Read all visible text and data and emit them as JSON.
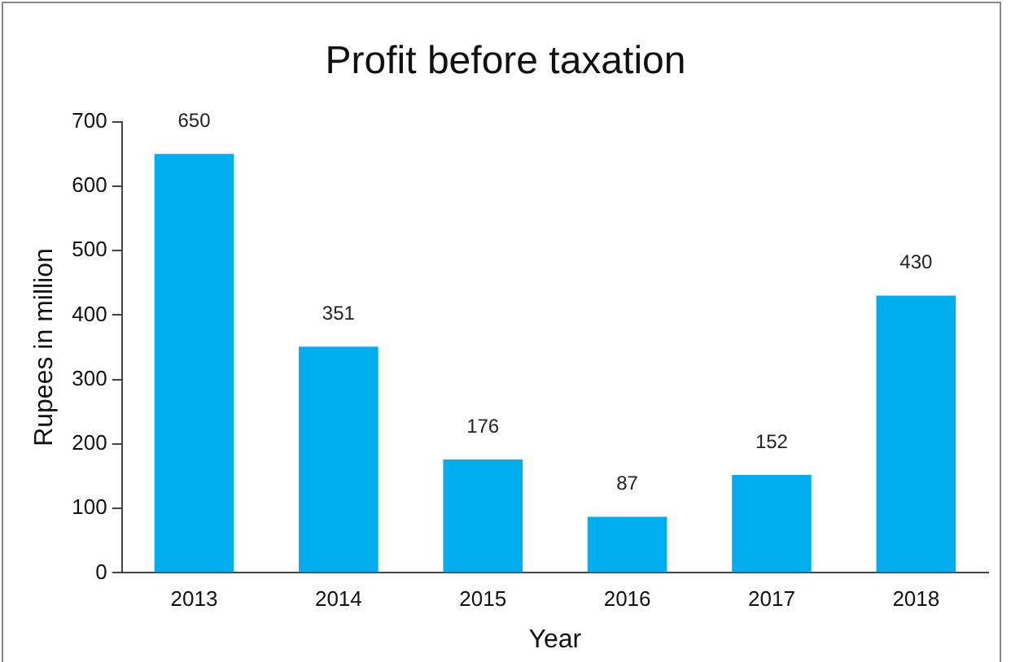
{
  "chart_data": {
    "type": "bar",
    "title": "Profit before taxation",
    "xlabel": "Year",
    "ylabel": "Rupees in million",
    "categories": [
      "2013",
      "2014",
      "2015",
      "2016",
      "2017",
      "2018"
    ],
    "values": [
      650,
      351,
      176,
      87,
      152,
      430
    ],
    "color": "#00adee",
    "ylim": [
      0,
      700
    ],
    "yticks": [
      0,
      100,
      200,
      300,
      400,
      500,
      600,
      700
    ],
    "grid": false,
    "legend": false,
    "data_labels": true
  }
}
